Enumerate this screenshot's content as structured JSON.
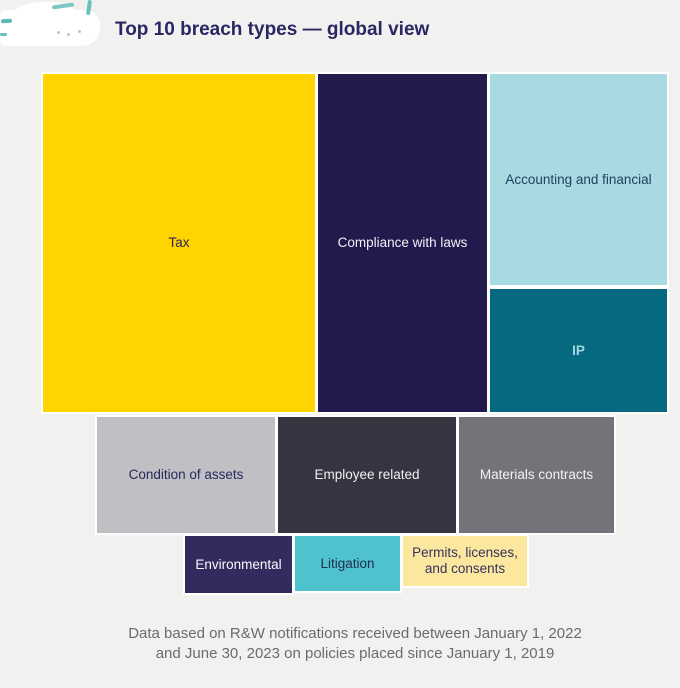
{
  "header": {
    "title": "Top 10 breach types — global view"
  },
  "footer": {
    "line1": "Data based on R&W notifications received between January 1, 2022",
    "line2": "and June 30, 2023 on policies placed since January 1, 2019"
  },
  "colors": {
    "background": "#F1F1EF",
    "gap": "#FFFFFF",
    "title_text": "#2A2763",
    "footer_text": "#6B6B6B"
  },
  "chart_data": {
    "type": "treemap",
    "title": "Top 10 breach types — global view",
    "source_note": "Data based on R&W notifications received between January 1, 2022 and June 30, 2023 on policies placed since January 1, 2019",
    "value_labels_shown": false,
    "legend": "none",
    "tiles": [
      {
        "rank": 1,
        "label": "Tax",
        "color": "#FFD400",
        "text_color": "#2A2550",
        "area_share_pct_est": 32.2
      },
      {
        "rank": 2,
        "label": "Compliance with laws",
        "color": "#211B4D",
        "text_color": "#F2F1F6",
        "area_share_pct_est": 20.0
      },
      {
        "rank": 3,
        "label": "Accounting and financial",
        "color": "#A7DBE1",
        "text_color": "#1F415F",
        "area_share_pct_est": 13.0
      },
      {
        "rank": 4,
        "label": "IP",
        "color": "#056A80",
        "text_color": "#A3D8DF",
        "area_share_pct_est": 7.7
      },
      {
        "rank": 5,
        "label": "Condition of assets",
        "color": "#BFC0C4",
        "text_color": "#2C275A",
        "area_share_pct_est": 7.3
      },
      {
        "rank": 6,
        "label": "Employee related",
        "color": "#343540",
        "text_color": "#F0F0F2",
        "area_share_pct_est": 7.3
      },
      {
        "rank": 7,
        "label": "Materials contracts",
        "color": "#737479",
        "text_color": "#F2F2F3",
        "area_share_pct_est": 6.3
      },
      {
        "rank": 8,
        "label": "Environmental",
        "color": "#322C5E",
        "text_color": "#FAFAFC",
        "area_share_pct_est": 2.1
      },
      {
        "rank": 9,
        "label": "Litigation",
        "color": "#4EC3CE",
        "text_color": "#1F2C52",
        "area_share_pct_est": 2.1
      },
      {
        "rank": 10,
        "label": "Permits, licenses, and consents",
        "color": "#FBE79E",
        "text_color": "#363260",
        "area_share_pct_est": 2.0
      }
    ]
  }
}
